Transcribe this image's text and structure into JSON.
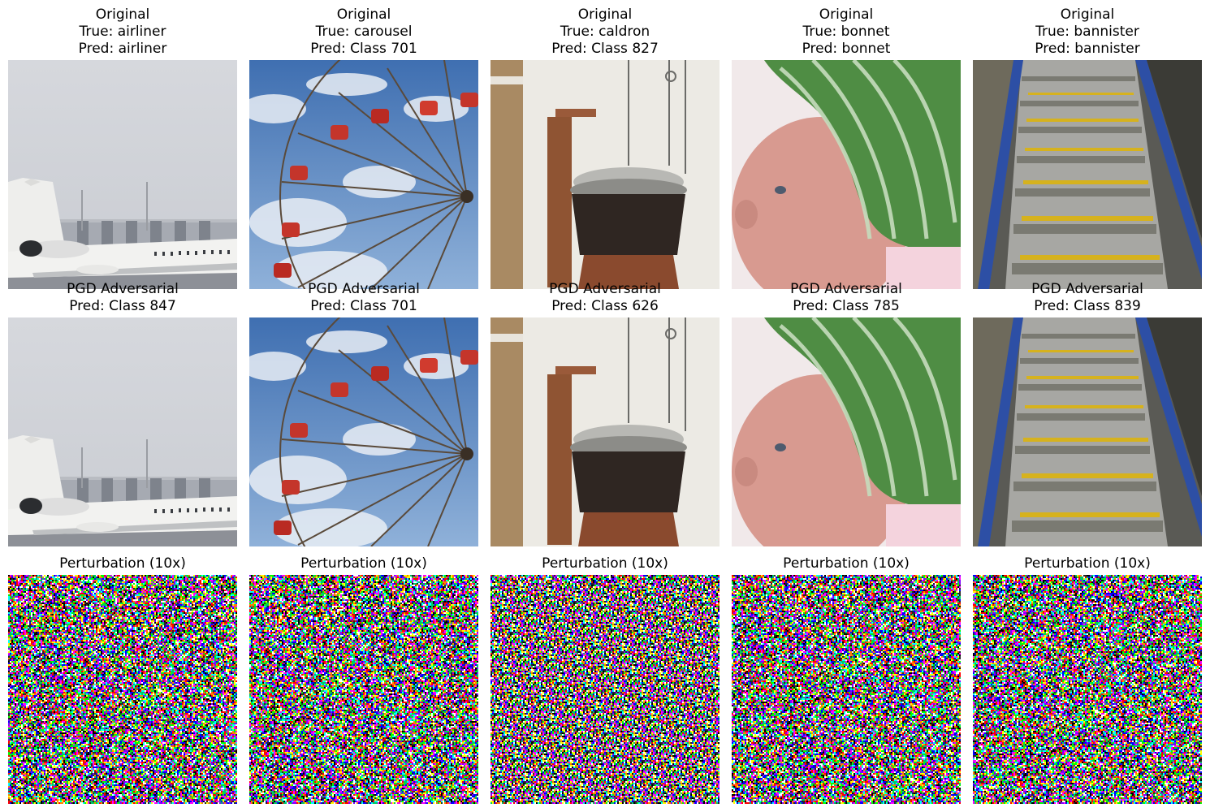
{
  "figure": {
    "rows": [
      {
        "kind": "original",
        "cells": [
          {
            "title": "Original",
            "true_label": "True: airliner",
            "pred_label": "Pred: airliner",
            "subject": "airliner"
          },
          {
            "title": "Original",
            "true_label": "True: carousel",
            "pred_label": "Pred: Class 701",
            "subject": "ferris-wheel"
          },
          {
            "title": "Original",
            "true_label": "True: caldron",
            "pred_label": "Pred: Class 827",
            "subject": "caldron"
          },
          {
            "title": "Original",
            "true_label": "True: bonnet",
            "pred_label": "Pred: bonnet",
            "subject": "bonnet"
          },
          {
            "title": "Original",
            "true_label": "True: bannister",
            "pred_label": "Pred: bannister",
            "subject": "escalator"
          }
        ]
      },
      {
        "kind": "adversarial",
        "cells": [
          {
            "title": "PGD Adversarial",
            "pred_label": "Pred: Class 847",
            "subject": "airliner"
          },
          {
            "title": "PGD Adversarial",
            "pred_label": "Pred: Class 701",
            "subject": "ferris-wheel"
          },
          {
            "title": "PGD Adversarial",
            "pred_label": "Pred: Class 626",
            "subject": "caldron"
          },
          {
            "title": "PGD Adversarial",
            "pred_label": "Pred: Class 785",
            "subject": "bonnet"
          },
          {
            "title": "PGD Adversarial",
            "pred_label": "Pred: Class 839",
            "subject": "escalator"
          }
        ]
      },
      {
        "kind": "perturbation",
        "cells": [
          {
            "title": "Perturbation (10x)"
          },
          {
            "title": "Perturbation (10x)"
          },
          {
            "title": "Perturbation (10x)"
          },
          {
            "title": "Perturbation (10x)"
          },
          {
            "title": "Perturbation (10x)"
          }
        ]
      }
    ]
  }
}
